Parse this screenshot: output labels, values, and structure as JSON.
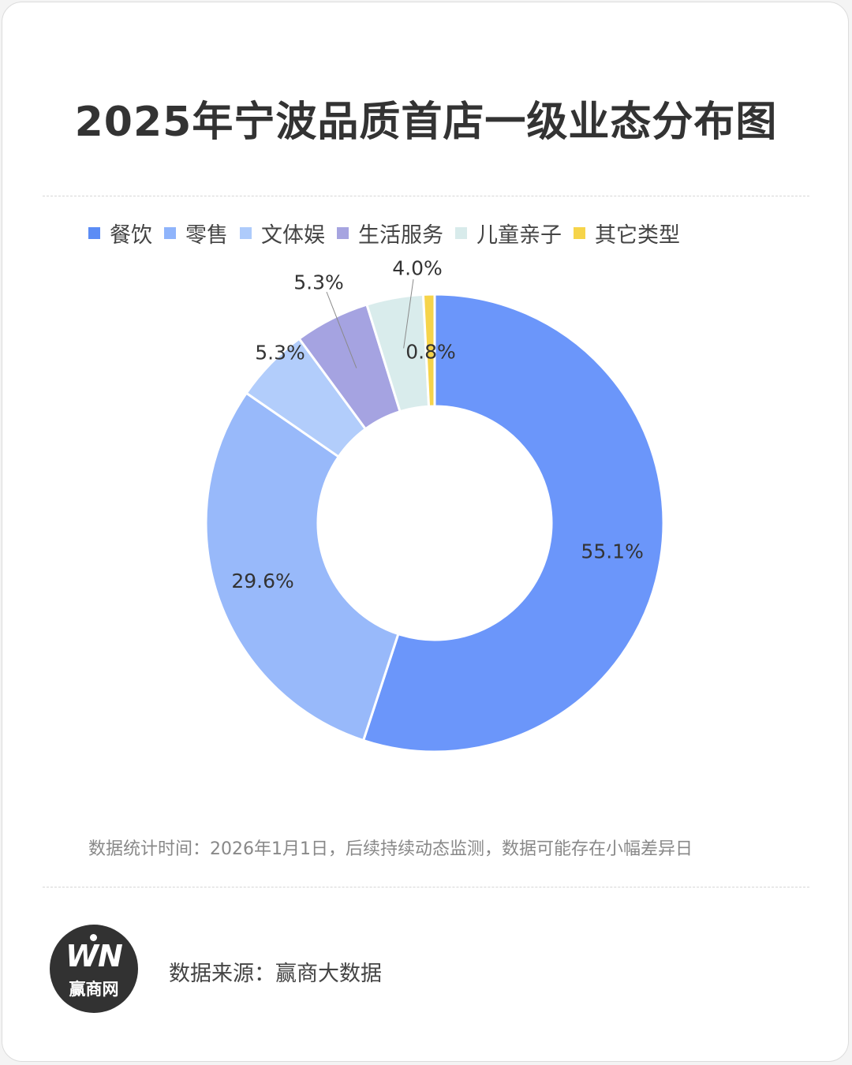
{
  "title": "2025年宁波品质首店一级业态分布图",
  "legend": [
    {
      "label": "餐饮",
      "color": "#5b8cf5"
    },
    {
      "label": "零售",
      "color": "#8fb4fb"
    },
    {
      "label": "文体娱",
      "color": "#aecbfb"
    },
    {
      "label": "生活服务",
      "color": "#a6a4e0"
    },
    {
      "label": "儿童亲子",
      "color": "#d8ebeb"
    },
    {
      "label": "其它类型",
      "color": "#f6d44a"
    }
  ],
  "chart_data": {
    "type": "pie",
    "donut": true,
    "categories": [
      "餐饮",
      "零售",
      "文体娱",
      "生活服务",
      "儿童亲子",
      "其它类型"
    ],
    "values": [
      55.1,
      29.6,
      5.3,
      5.3,
      4.0,
      0.8
    ],
    "labels": [
      "55.1%",
      "29.6%",
      "5.3%",
      "5.3%",
      "4.0%",
      "0.8%"
    ],
    "colors": [
      "#6b96fa",
      "#98b9fa",
      "#b2cdfb",
      "#a5a3e1",
      "#d9ecec",
      "#f6d44a"
    ],
    "legend_position": "top"
  },
  "note": "数据统计时间：2026年1月1日，后续持续动态监测，数据可能存在小幅差异日",
  "footer": {
    "logo_mark": "WN",
    "logo_text": "赢商网",
    "source": "数据来源：赢商大数据"
  }
}
